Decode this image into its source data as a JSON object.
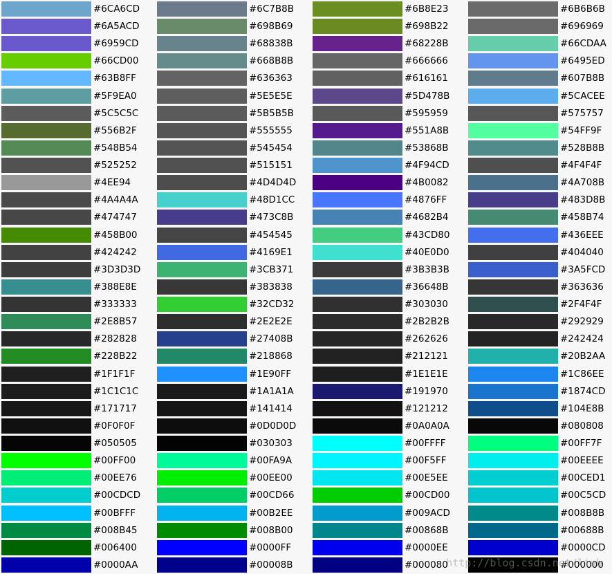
{
  "columns": [
    [
      "#6CA6CD",
      "#6A5ACD",
      "#6959CD",
      "#66CD00",
      "#63B8FF",
      "#5F9EA0",
      "#5C5C5C",
      "#556B2F",
      "#548B54",
      "#525252",
      "#4EE94",
      "#4A4A4A",
      "#474747",
      "#458B00",
      "#424242",
      "#3D3D3D",
      "#388E8E",
      "#333333",
      "#2E8B57",
      "#282828",
      "#228B22",
      "#1F1F1F",
      "#1C1C1C",
      "#171717",
      "#0F0F0F",
      "#050505",
      "#00FF00",
      "#00EE76",
      "#00CDCD",
      "#00BFFF",
      "#008B45",
      "#006400",
      "#0000AA"
    ],
    [
      "#6C7B8B",
      "#698B69",
      "#68838B",
      "#668B8B",
      "#636363",
      "#5E5E5E",
      "#5B5B5B",
      "#555555",
      "#545454",
      "#515151",
      "#4D4D4D",
      "#48D1CC",
      "#473C8B",
      "#454545",
      "#4169E1",
      "#3CB371",
      "#383838",
      "#32CD32",
      "#2E2E2E",
      "#27408B",
      "#218868",
      "#1E90FF",
      "#1A1A1A",
      "#141414",
      "#0D0D0D",
      "#030303",
      "#00FA9A",
      "#00EE00",
      "#00CD66",
      "#00B2EE",
      "#008B00",
      "#0000FF",
      "#00008B"
    ],
    [
      "#6B8E23",
      "#698B22",
      "#68228B",
      "#666666",
      "#616161",
      "#5D478B",
      "#595959",
      "#551A8B",
      "#53868B",
      "#4F94CD",
      "#4B0082",
      "#4876FF",
      "#4682B4",
      "#43CD80",
      "#40E0D0",
      "#3B3B3B",
      "#36648B",
      "#303030",
      "#2B2B2B",
      "#262626",
      "#212121",
      "#1E1E1E",
      "#191970",
      "#121212",
      "#0A0A0A",
      "#00FFFF",
      "#00F5FF",
      "#00E5EE",
      "#00CD00",
      "#009ACD",
      "#00868B",
      "#0000EE",
      "#000080"
    ],
    [
      "#6B6B6B",
      "#696969",
      "#66CDAA",
      "#6495ED",
      "#607B8B",
      "#5CACEE",
      "#575757",
      "#54FF9F",
      "#528B8B",
      "#4F4F4F",
      "#4A708B",
      "#483D8B",
      "#458B74",
      "#436EEE",
      "#404040",
      "#3A5FCD",
      "#363636",
      "#2F4F4F",
      "#292929",
      "#242424",
      "#20B2AA",
      "#1C86EE",
      "#1874CD",
      "#104E8B",
      "#080808",
      "#00FF7F",
      "#00EEEE",
      "#00CED1",
      "#00C5CD",
      "#008B8B",
      "#00688B",
      "#0000CD",
      "#000000"
    ]
  ],
  "watermark": "http://blog.csdn.net/liub"
}
